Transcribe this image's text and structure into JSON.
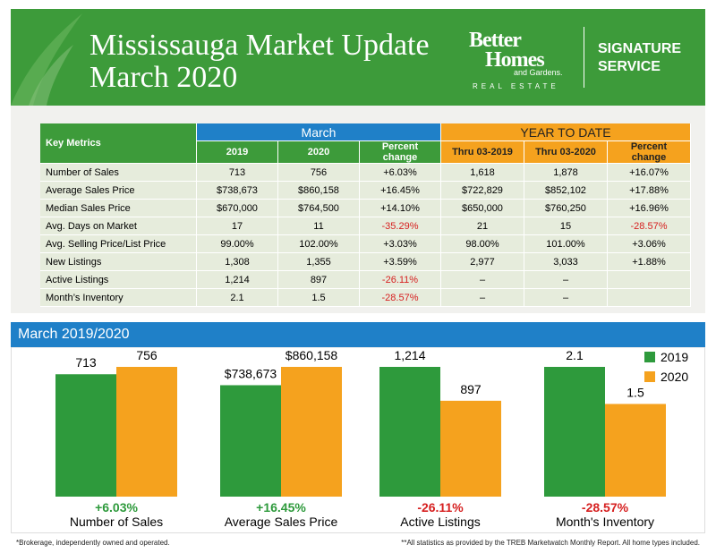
{
  "header": {
    "title_lines": [
      "Mississauga Market Update",
      "March 2020"
    ],
    "logo": {
      "line1": "Better",
      "line2": "Homes",
      "line3": "and Gardens.",
      "line4": "REAL ESTATE"
    },
    "service": [
      "SIGNATURE",
      "SERVICE"
    ]
  },
  "table": {
    "corner": "Key Metrics",
    "groups": [
      "March",
      "YEAR TO DATE"
    ],
    "columns": [
      "2019",
      "2020",
      "Percent change",
      "Thru 03-2019",
      "Thru 03-2020",
      "Percent change"
    ],
    "rows": [
      [
        "Number of Sales",
        "713",
        "756",
        "+6.03%",
        "1,618",
        "1,878",
        "+16.07%"
      ],
      [
        "Average Sales Price",
        "$738,673",
        "$860,158",
        "+16.45%",
        "$722,829",
        "$852,102",
        "+17.88%"
      ],
      [
        "Median Sales Price",
        "$670,000",
        "$764,500",
        "+14.10%",
        "$650,000",
        "$760,250",
        "+16.96%"
      ],
      [
        "Avg. Days on Market",
        "17",
        "11",
        "-35.29%",
        "21",
        "15",
        "-28.57%"
      ],
      [
        "Avg. Selling Price/List Price",
        "99.00%",
        "102.00%",
        "+3.03%",
        "98.00%",
        "101.00%",
        "+3.06%"
      ],
      [
        "New Listings",
        "1,308",
        "1,355",
        "+3.59%",
        "2,977",
        "3,033",
        "+1.88%"
      ],
      [
        "Active Listings",
        "1,214",
        "897",
        "-26.11%",
        "–",
        "–",
        ""
      ],
      [
        "Month’s Inventory",
        "2.1",
        "1.5",
        "-28.57%",
        "–",
        "–",
        ""
      ]
    ]
  },
  "chart": {
    "type": "bar",
    "title": "March 2019/2020",
    "series": [
      {
        "name": "2019",
        "color": "#2e9a3c"
      },
      {
        "name": "2020",
        "color": "#f5a21e"
      }
    ],
    "groups": [
      {
        "name": "Number of Sales",
        "values": [
          713,
          756
        ],
        "change": "+6.03%"
      },
      {
        "name": "Average Sales Price",
        "values": [
          738673,
          860158
        ],
        "value_labels": [
          "$738,673",
          "$860,158"
        ],
        "change": "+16.45%"
      },
      {
        "name": "Active Listings",
        "values": [
          1214,
          897
        ],
        "value_labels": [
          "1,214",
          "897"
        ],
        "change": "-26.11%"
      },
      {
        "name": "Month's Inventory",
        "values": [
          2.1,
          1.5
        ],
        "change": "-28.57%"
      }
    ]
  },
  "footnotes": [
    "*Brokerage, independently owned and operated.",
    "**All statistics as provided by the TREB Marketwatch Monthly Report. All home types included."
  ]
}
